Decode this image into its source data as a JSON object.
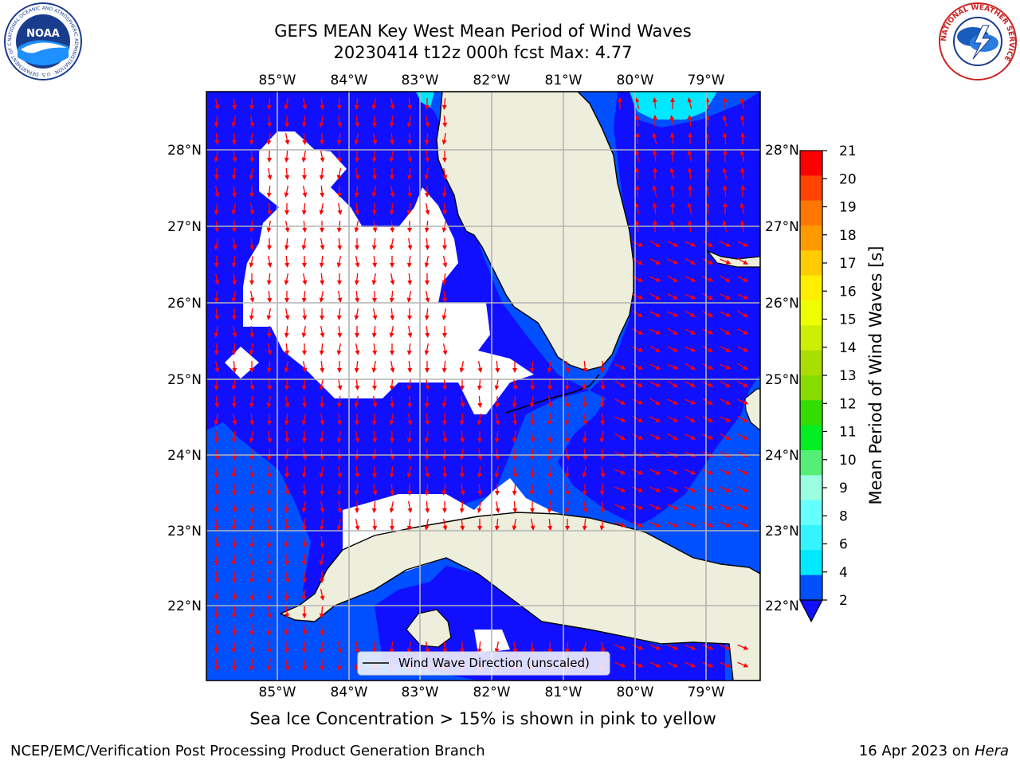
{
  "title_line1": "GEFS MEAN Key West Mean Period of Wind Waves",
  "title_line2": "20230414 t12z 000h fcst   Max: 4.77",
  "map": {
    "lon_ticks": [
      "85°W",
      "84°W",
      "83°W",
      "82°W",
      "81°W",
      "80°W",
      "79°W"
    ],
    "lat_ticks": [
      "28°N",
      "27°N",
      "26°N",
      "25°N",
      "24°N",
      "23°N",
      "22°N"
    ],
    "legend_label": "Wind Wave Direction (unscaled)",
    "colors": {
      "land": "#eeeedc",
      "level_2_4": "#0050ff",
      "level_4_6": "#00e8ff",
      "low_period_band": "#1010ff",
      "below_range": "#ffffff",
      "arrows": "#ff0000",
      "grid": "#b4b4b4"
    }
  },
  "colorbar": {
    "label": "Mean Period of Wind Waves [s]",
    "ticks": [
      "2",
      "4",
      "6",
      "8",
      "9",
      "10",
      "11",
      "12",
      "13",
      "14",
      "15",
      "16",
      "17",
      "18",
      "19",
      "20",
      "21"
    ],
    "colors": [
      "#0050ff",
      "#00e8ff",
      "#33f4ff",
      "#66ffff",
      "#99ffe0",
      "#55ee77",
      "#00ee22",
      "#33dd00",
      "#88dd00",
      "#aadd00",
      "#ccee00",
      "#eeff00",
      "#ffee00",
      "#ffcc00",
      "#ff9900",
      "#ff7700",
      "#ff4400",
      "#ff0000"
    ],
    "extend_color": "#1010ff"
  },
  "footer_note": "Sea Ice Concentration > 15% is shown in pink to yellow",
  "credit_left": "NCEP/EMC/Verification Post Processing Product Generation Branch",
  "credit_right_date": "16 Apr 2023 on",
  "credit_right_machine": "Hera",
  "logos": {
    "noaa_text": "NOAA",
    "noaa_ring": "NATIONAL OCEANIC AND ATMOSPHERIC ADMINISTRATION · U.S. DEPARTMENT OF COMMERCE",
    "nws_ring": "NATIONAL WEATHER SERVICE"
  }
}
